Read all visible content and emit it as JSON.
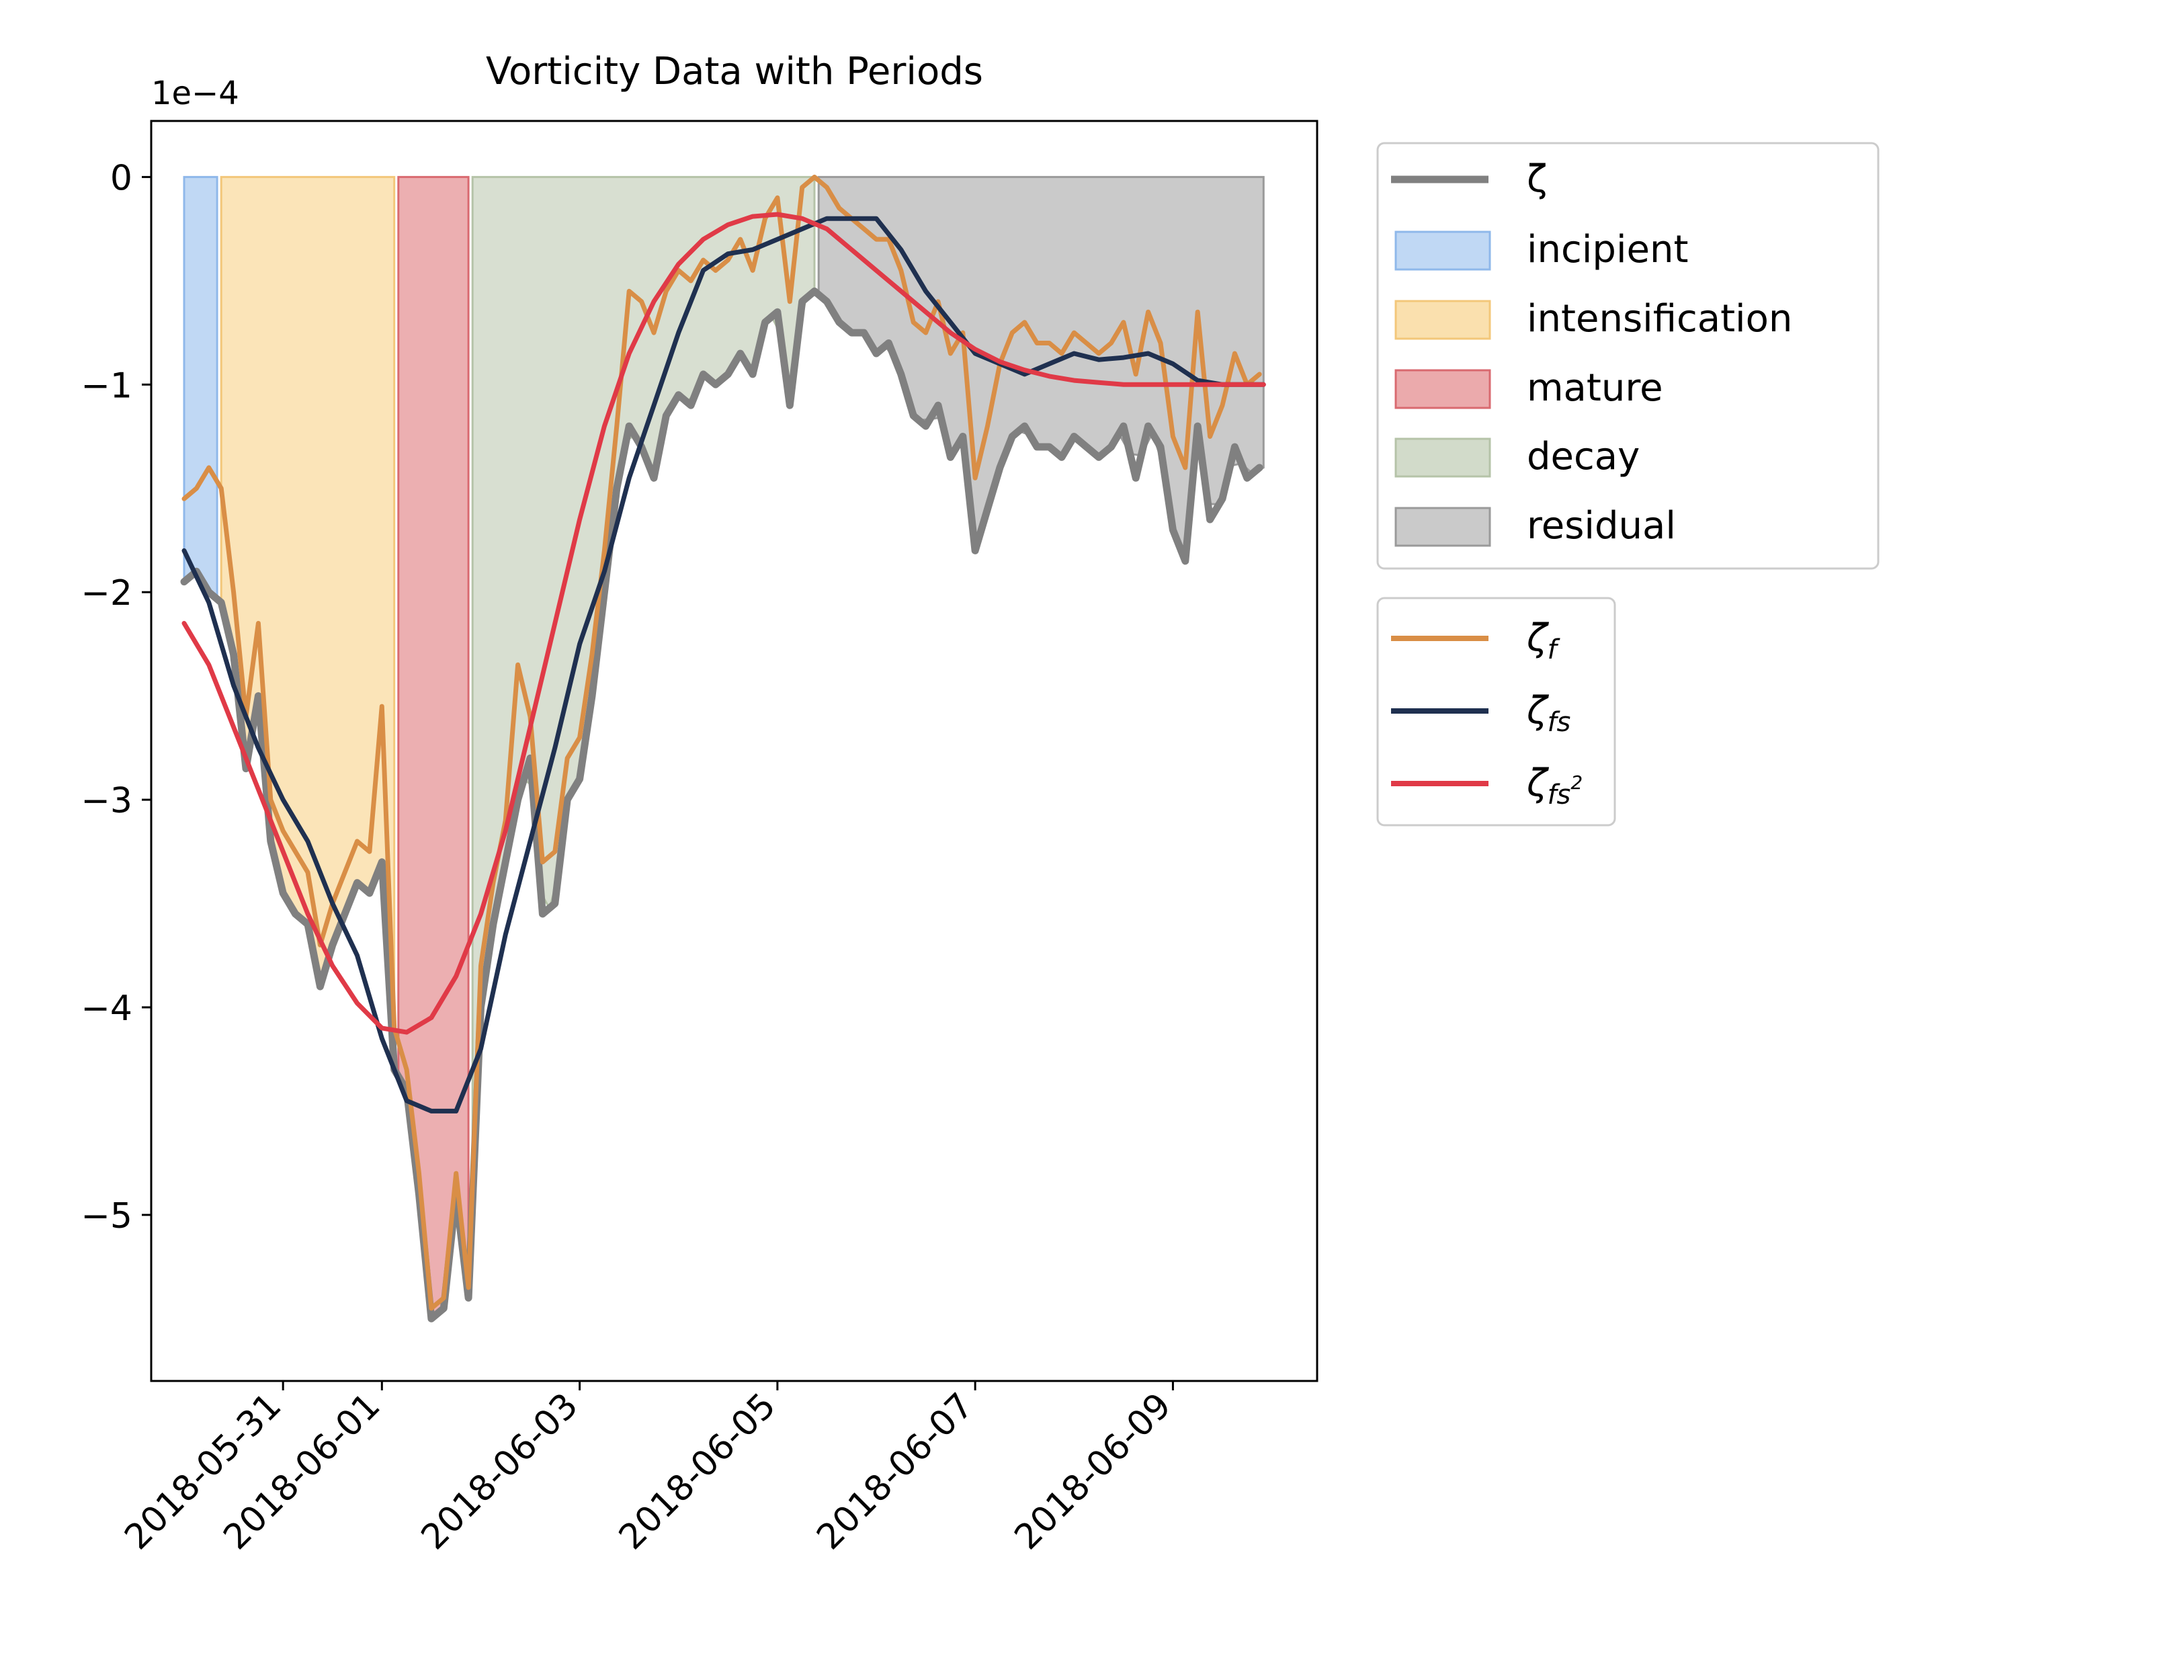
{
  "chart_data": {
    "type": "line",
    "title": "Vorticity Data with Periods",
    "y_offset_label": "1e−4",
    "xlabel": "",
    "ylabel": "",
    "xlim": [
      "2018-05-29T16:00",
      "2018-06-10T11:00"
    ],
    "ylim": [
      -5.8,
      0.27
    ],
    "x_ticks": [
      {
        "value": "2018-05-31",
        "label": "2018-05-31"
      },
      {
        "value": "2018-06-01",
        "label": "2018-06-01"
      },
      {
        "value": "2018-06-03",
        "label": "2018-06-03"
      },
      {
        "value": "2018-06-05",
        "label": "2018-06-05"
      },
      {
        "value": "2018-06-07",
        "label": "2018-06-07"
      },
      {
        "value": "2018-06-09",
        "label": "2018-06-09"
      }
    ],
    "y_ticks": [
      {
        "value": 0,
        "label": "0"
      },
      {
        "value": -1,
        "label": "−1"
      },
      {
        "value": -2,
        "label": "−2"
      },
      {
        "value": -3,
        "label": "−3"
      },
      {
        "value": -4,
        "label": "−4"
      },
      {
        "value": -5,
        "label": "−5"
      }
    ],
    "grid": false,
    "periods": [
      {
        "name": "incipient",
        "start": "2018-05-30T00:00",
        "end": "2018-05-30T08:00",
        "color": "#a5c8f0",
        "edge": "#8fb8ea"
      },
      {
        "name": "intensification",
        "start": "2018-05-30T09:00",
        "end": "2018-06-01T03:00",
        "color": "#f9d89a",
        "edge": "#f3c77a"
      },
      {
        "name": "mature",
        "start": "2018-06-01T04:00",
        "end": "2018-06-01T21:00",
        "color": "#e48d90",
        "edge": "#d96a70"
      },
      {
        "name": "decay",
        "start": "2018-06-01T22:00",
        "end": "2018-06-05T09:00",
        "color": "#c7d2bd",
        "edge": "#b5c3a8"
      },
      {
        "name": "residual",
        "start": "2018-06-05T10:00",
        "end": "2018-06-09T22:00",
        "color": "#b3b3b3",
        "edge": "#9a9a9a"
      }
    ],
    "series": [
      {
        "name": "ζ",
        "color": "#808080",
        "x": [
          "2018-05-30T00:00",
          "2018-05-30T03:00",
          "2018-05-30T06:00",
          "2018-05-30T09:00",
          "2018-05-30T12:00",
          "2018-05-30T15:00",
          "2018-05-30T18:00",
          "2018-05-30T21:00",
          "2018-05-31T00:00",
          "2018-05-31T03:00",
          "2018-05-31T06:00",
          "2018-05-31T09:00",
          "2018-05-31T12:00",
          "2018-05-31T15:00",
          "2018-05-31T18:00",
          "2018-05-31T21:00",
          "2018-06-01T00:00",
          "2018-06-01T03:00",
          "2018-06-01T06:00",
          "2018-06-01T09:00",
          "2018-06-01T12:00",
          "2018-06-01T15:00",
          "2018-06-01T18:00",
          "2018-06-01T21:00",
          "2018-06-02T00:00",
          "2018-06-02T03:00",
          "2018-06-02T06:00",
          "2018-06-02T09:00",
          "2018-06-02T12:00",
          "2018-06-02T15:00",
          "2018-06-02T18:00",
          "2018-06-02T21:00",
          "2018-06-03T00:00",
          "2018-06-03T03:00",
          "2018-06-03T06:00",
          "2018-06-03T09:00",
          "2018-06-03T12:00",
          "2018-06-03T15:00",
          "2018-06-03T18:00",
          "2018-06-03T21:00",
          "2018-06-04T00:00",
          "2018-06-04T03:00",
          "2018-06-04T06:00",
          "2018-06-04T09:00",
          "2018-06-04T12:00",
          "2018-06-04T15:00",
          "2018-06-04T18:00",
          "2018-06-04T21:00",
          "2018-06-05T00:00",
          "2018-06-05T03:00",
          "2018-06-05T06:00",
          "2018-06-05T09:00",
          "2018-06-05T12:00",
          "2018-06-05T15:00",
          "2018-06-05T18:00",
          "2018-06-05T21:00",
          "2018-06-06T00:00",
          "2018-06-06T03:00",
          "2018-06-06T06:00",
          "2018-06-06T09:00",
          "2018-06-06T12:00",
          "2018-06-06T15:00",
          "2018-06-06T18:00",
          "2018-06-06T21:00",
          "2018-06-07T00:00",
          "2018-06-07T03:00",
          "2018-06-07T06:00",
          "2018-06-07T09:00",
          "2018-06-07T12:00",
          "2018-06-07T15:00",
          "2018-06-07T18:00",
          "2018-06-07T21:00",
          "2018-06-08T00:00",
          "2018-06-08T03:00",
          "2018-06-08T06:00",
          "2018-06-08T09:00",
          "2018-06-08T12:00",
          "2018-06-08T15:00",
          "2018-06-08T18:00",
          "2018-06-08T21:00",
          "2018-06-09T00:00",
          "2018-06-09T03:00",
          "2018-06-09T06:00",
          "2018-06-09T09:00",
          "2018-06-09T12:00",
          "2018-06-09T15:00",
          "2018-06-09T18:00",
          "2018-06-09T21:00"
        ],
        "y": [
          -1.95,
          -1.9,
          -2.0,
          -2.05,
          -2.3,
          -2.85,
          -2.5,
          -3.2,
          -3.45,
          -3.55,
          -3.6,
          -3.9,
          -3.7,
          -3.55,
          -3.4,
          -3.45,
          -3.3,
          -4.3,
          -4.4,
          -4.9,
          -5.5,
          -5.45,
          -4.9,
          -5.4,
          -4.0,
          -3.6,
          -3.3,
          -3.0,
          -2.8,
          -3.55,
          -3.5,
          -3.0,
          -2.9,
          -2.5,
          -2.0,
          -1.5,
          -1.2,
          -1.3,
          -1.45,
          -1.15,
          -1.05,
          -1.1,
          -0.95,
          -1.0,
          -0.95,
          -0.85,
          -0.95,
          -0.7,
          -0.65,
          -1.1,
          -0.6,
          -0.55,
          -0.6,
          -0.7,
          -0.75,
          -0.75,
          -0.85,
          -0.8,
          -0.95,
          -1.15,
          -1.2,
          -1.1,
          -1.35,
          -1.25,
          -1.8,
          -1.6,
          -1.4,
          -1.25,
          -1.2,
          -1.3,
          -1.3,
          -1.35,
          -1.25,
          -1.3,
          -1.35,
          -1.3,
          -1.2,
          -1.45,
          -1.2,
          -1.3,
          -1.7,
          -1.85,
          -1.2,
          -1.65,
          -1.55,
          -1.3,
          -1.45,
          -1.4
        ]
      },
      {
        "name": "ζ",
        "sub": "f",
        "color": "#d98e46",
        "x": [
          "2018-05-30T00:00",
          "2018-05-30T03:00",
          "2018-05-30T06:00",
          "2018-05-30T09:00",
          "2018-05-30T12:00",
          "2018-05-30T15:00",
          "2018-05-30T18:00",
          "2018-05-30T21:00",
          "2018-05-31T00:00",
          "2018-05-31T03:00",
          "2018-05-31T06:00",
          "2018-05-31T09:00",
          "2018-05-31T12:00",
          "2018-05-31T15:00",
          "2018-05-31T18:00",
          "2018-05-31T21:00",
          "2018-06-01T00:00",
          "2018-06-01T03:00",
          "2018-06-01T06:00",
          "2018-06-01T09:00",
          "2018-06-01T12:00",
          "2018-06-01T15:00",
          "2018-06-01T18:00",
          "2018-06-01T21:00",
          "2018-06-02T00:00",
          "2018-06-02T03:00",
          "2018-06-02T06:00",
          "2018-06-02T09:00",
          "2018-06-02T12:00",
          "2018-06-02T15:00",
          "2018-06-02T18:00",
          "2018-06-02T21:00",
          "2018-06-03T00:00",
          "2018-06-03T03:00",
          "2018-06-03T06:00",
          "2018-06-03T09:00",
          "2018-06-03T12:00",
          "2018-06-03T15:00",
          "2018-06-03T18:00",
          "2018-06-03T21:00",
          "2018-06-04T00:00",
          "2018-06-04T03:00",
          "2018-06-04T06:00",
          "2018-06-04T09:00",
          "2018-06-04T12:00",
          "2018-06-04T15:00",
          "2018-06-04T18:00",
          "2018-06-04T21:00",
          "2018-06-05T00:00",
          "2018-06-05T03:00",
          "2018-06-05T06:00",
          "2018-06-05T09:00",
          "2018-06-05T12:00",
          "2018-06-05T15:00",
          "2018-06-05T18:00",
          "2018-06-05T21:00",
          "2018-06-06T00:00",
          "2018-06-06T03:00",
          "2018-06-06T06:00",
          "2018-06-06T09:00",
          "2018-06-06T12:00",
          "2018-06-06T15:00",
          "2018-06-06T18:00",
          "2018-06-06T21:00",
          "2018-06-07T00:00",
          "2018-06-07T03:00",
          "2018-06-07T06:00",
          "2018-06-07T09:00",
          "2018-06-07T12:00",
          "2018-06-07T15:00",
          "2018-06-07T18:00",
          "2018-06-07T21:00",
          "2018-06-08T00:00",
          "2018-06-08T03:00",
          "2018-06-08T06:00",
          "2018-06-08T09:00",
          "2018-06-08T12:00",
          "2018-06-08T15:00",
          "2018-06-08T18:00",
          "2018-06-08T21:00",
          "2018-06-09T00:00",
          "2018-06-09T03:00",
          "2018-06-09T06:00",
          "2018-06-09T09:00",
          "2018-06-09T12:00",
          "2018-06-09T15:00",
          "2018-06-09T18:00",
          "2018-06-09T21:00"
        ],
        "y": [
          -1.55,
          -1.5,
          -1.4,
          -1.5,
          -2.0,
          -2.6,
          -2.15,
          -3.0,
          -3.15,
          -3.25,
          -3.35,
          -3.7,
          -3.5,
          -3.35,
          -3.2,
          -3.25,
          -2.55,
          -4.1,
          -4.3,
          -4.8,
          -5.45,
          -5.4,
          -4.8,
          -5.35,
          -3.8,
          -3.4,
          -3.1,
          -2.35,
          -2.6,
          -3.3,
          -3.25,
          -2.8,
          -2.7,
          -2.3,
          -1.8,
          -1.2,
          -0.55,
          -0.6,
          -0.75,
          -0.55,
          -0.45,
          -0.5,
          -0.4,
          -0.45,
          -0.4,
          -0.3,
          -0.45,
          -0.2,
          -0.1,
          -0.6,
          -0.05,
          0.0,
          -0.05,
          -0.15,
          -0.2,
          -0.25,
          -0.3,
          -0.3,
          -0.45,
          -0.7,
          -0.75,
          -0.6,
          -0.85,
          -0.75,
          -1.45,
          -1.2,
          -0.9,
          -0.75,
          -0.7,
          -0.8,
          -0.8,
          -0.85,
          -0.75,
          -0.8,
          -0.85,
          -0.8,
          -0.7,
          -0.95,
          -0.65,
          -0.8,
          -1.25,
          -1.4,
          -0.65,
          -1.25,
          -1.1,
          -0.85,
          -1.0,
          -0.95
        ]
      },
      {
        "name": "ζ",
        "sub": "fs",
        "color": "#1f3050",
        "x": [
          "2018-05-30T00:00",
          "2018-05-30T06:00",
          "2018-05-30T12:00",
          "2018-05-30T18:00",
          "2018-05-31T00:00",
          "2018-05-31T06:00",
          "2018-05-31T12:00",
          "2018-05-31T18:00",
          "2018-06-01T00:00",
          "2018-06-01T06:00",
          "2018-06-01T12:00",
          "2018-06-01T18:00",
          "2018-06-02T00:00",
          "2018-06-02T06:00",
          "2018-06-02T12:00",
          "2018-06-02T18:00",
          "2018-06-03T00:00",
          "2018-06-03T06:00",
          "2018-06-03T12:00",
          "2018-06-03T18:00",
          "2018-06-04T00:00",
          "2018-06-04T06:00",
          "2018-06-04T12:00",
          "2018-06-04T18:00",
          "2018-06-05T00:00",
          "2018-06-05T06:00",
          "2018-06-05T12:00",
          "2018-06-05T18:00",
          "2018-06-06T00:00",
          "2018-06-06T06:00",
          "2018-06-06T12:00",
          "2018-06-06T18:00",
          "2018-06-07T00:00",
          "2018-06-07T06:00",
          "2018-06-07T12:00",
          "2018-06-07T18:00",
          "2018-06-08T00:00",
          "2018-06-08T06:00",
          "2018-06-08T12:00",
          "2018-06-08T18:00",
          "2018-06-09T00:00",
          "2018-06-09T06:00",
          "2018-06-09T12:00",
          "2018-06-09T18:00",
          "2018-06-09T22:00"
        ],
        "y": [
          -1.8,
          -2.05,
          -2.45,
          -2.75,
          -3.0,
          -3.2,
          -3.5,
          -3.75,
          -4.15,
          -4.45,
          -4.5,
          -4.5,
          -4.2,
          -3.65,
          -3.2,
          -2.75,
          -2.25,
          -1.9,
          -1.45,
          -1.1,
          -0.75,
          -0.45,
          -0.37,
          -0.35,
          -0.3,
          -0.25,
          -0.2,
          -0.2,
          -0.2,
          -0.35,
          -0.55,
          -0.7,
          -0.85,
          -0.9,
          -0.95,
          -0.9,
          -0.85,
          -0.88,
          -0.87,
          -0.85,
          -0.9,
          -0.98,
          -1.0,
          -1.0,
          -1.0
        ]
      },
      {
        "name": "ζ",
        "sub": "fs",
        "sup": "2",
        "color": "#e03a47",
        "x": [
          "2018-05-30T00:00",
          "2018-05-30T06:00",
          "2018-05-30T12:00",
          "2018-05-30T18:00",
          "2018-05-31T00:00",
          "2018-05-31T06:00",
          "2018-05-31T12:00",
          "2018-05-31T18:00",
          "2018-06-01T00:00",
          "2018-06-01T06:00",
          "2018-06-01T12:00",
          "2018-06-01T18:00",
          "2018-06-02T00:00",
          "2018-06-02T06:00",
          "2018-06-02T12:00",
          "2018-06-02T18:00",
          "2018-06-03T00:00",
          "2018-06-03T06:00",
          "2018-06-03T12:00",
          "2018-06-03T18:00",
          "2018-06-04T00:00",
          "2018-06-04T06:00",
          "2018-06-04T12:00",
          "2018-06-04T18:00",
          "2018-06-05T00:00",
          "2018-06-05T06:00",
          "2018-06-05T12:00",
          "2018-06-05T18:00",
          "2018-06-06T00:00",
          "2018-06-06T06:00",
          "2018-06-06T12:00",
          "2018-06-06T18:00",
          "2018-06-07T00:00",
          "2018-06-07T06:00",
          "2018-06-07T12:00",
          "2018-06-07T18:00",
          "2018-06-08T00:00",
          "2018-06-08T06:00",
          "2018-06-08T12:00",
          "2018-06-08T18:00",
          "2018-06-09T00:00",
          "2018-06-09T06:00",
          "2018-06-09T12:00",
          "2018-06-09T18:00",
          "2018-06-09T22:00"
        ],
        "y": [
          -2.15,
          -2.35,
          -2.65,
          -2.95,
          -3.25,
          -3.55,
          -3.8,
          -3.98,
          -4.1,
          -4.12,
          -4.05,
          -3.85,
          -3.55,
          -3.15,
          -2.65,
          -2.15,
          -1.65,
          -1.2,
          -0.85,
          -0.6,
          -0.42,
          -0.3,
          -0.23,
          -0.19,
          -0.18,
          -0.2,
          -0.25,
          -0.35,
          -0.45,
          -0.55,
          -0.65,
          -0.75,
          -0.83,
          -0.89,
          -0.93,
          -0.96,
          -0.98,
          -0.99,
          -1.0,
          -1.0,
          -1.0,
          -1.0,
          -1.0,
          -1.0,
          -1.0
        ]
      }
    ],
    "legend": [
      {
        "placement": "upper-right-outside",
        "entries": [
          "ζ",
          "incipient",
          "intensification",
          "mature",
          "decay",
          "residual"
        ]
      },
      {
        "placement": "right-outside",
        "entries": [
          "ζ f",
          "ζ fs",
          "ζ fs 2"
        ]
      }
    ]
  }
}
